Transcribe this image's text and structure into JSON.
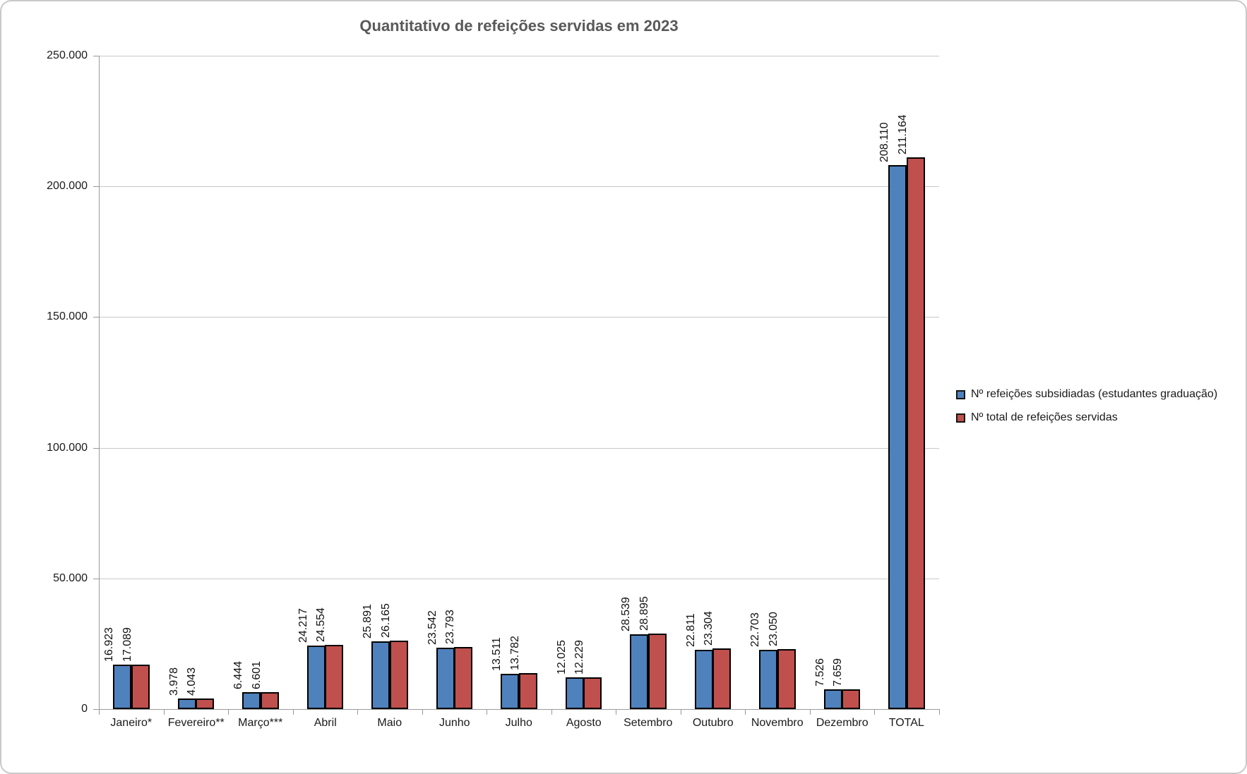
{
  "chart_data": {
    "type": "bar",
    "title": "Quantitativo de refeições servidas em 2023",
    "categories": [
      "Janeiro*",
      "Fevereiro**",
      "Março***",
      "Abril",
      "Maio",
      "Junho",
      "Julho",
      "Agosto",
      "Setembro",
      "Outubro",
      "Novembro",
      "Dezembro",
      "TOTAL"
    ],
    "series": [
      {
        "key": "subsidiadas",
        "name": "Nº refeições subsidiadas (estudantes graduação)",
        "color": "#4F81BD",
        "values": [
          16923,
          3978,
          6444,
          24217,
          25891,
          23542,
          13511,
          12025,
          28539,
          22811,
          22703,
          7526,
          208110
        ],
        "labels": [
          "16.923",
          "3.978",
          "6.444",
          "24.217",
          "25.891",
          "23.542",
          "13.511",
          "12.025",
          "28.539",
          "22.811",
          "22.703",
          "7.526",
          "208.110"
        ]
      },
      {
        "key": "total",
        "name": "Nº total de refeições servidas",
        "color": "#C0504D",
        "values": [
          17089,
          4043,
          6601,
          24554,
          26165,
          23793,
          13782,
          12229,
          28895,
          23304,
          23050,
          7659,
          211164
        ],
        "labels": [
          "17.089",
          "4.043",
          "6.601",
          "24.554",
          "26.165",
          "23.793",
          "13.782",
          "12.229",
          "28.895",
          "23.304",
          "23.050",
          "7.659",
          "211.164"
        ]
      }
    ],
    "ylim": [
      0,
      250000
    ],
    "y_ticks": [
      {
        "value": 0,
        "label": "0"
      },
      {
        "value": 50000,
        "label": "50.000"
      },
      {
        "value": 100000,
        "label": "100.000"
      },
      {
        "value": 150000,
        "label": "150.000"
      },
      {
        "value": 200000,
        "label": "200.000"
      },
      {
        "value": 250000,
        "label": "250.000"
      }
    ],
    "xlabel": "",
    "ylabel": "",
    "grid": true,
    "legend_position": "right",
    "bar_outline_color": "#000000"
  }
}
